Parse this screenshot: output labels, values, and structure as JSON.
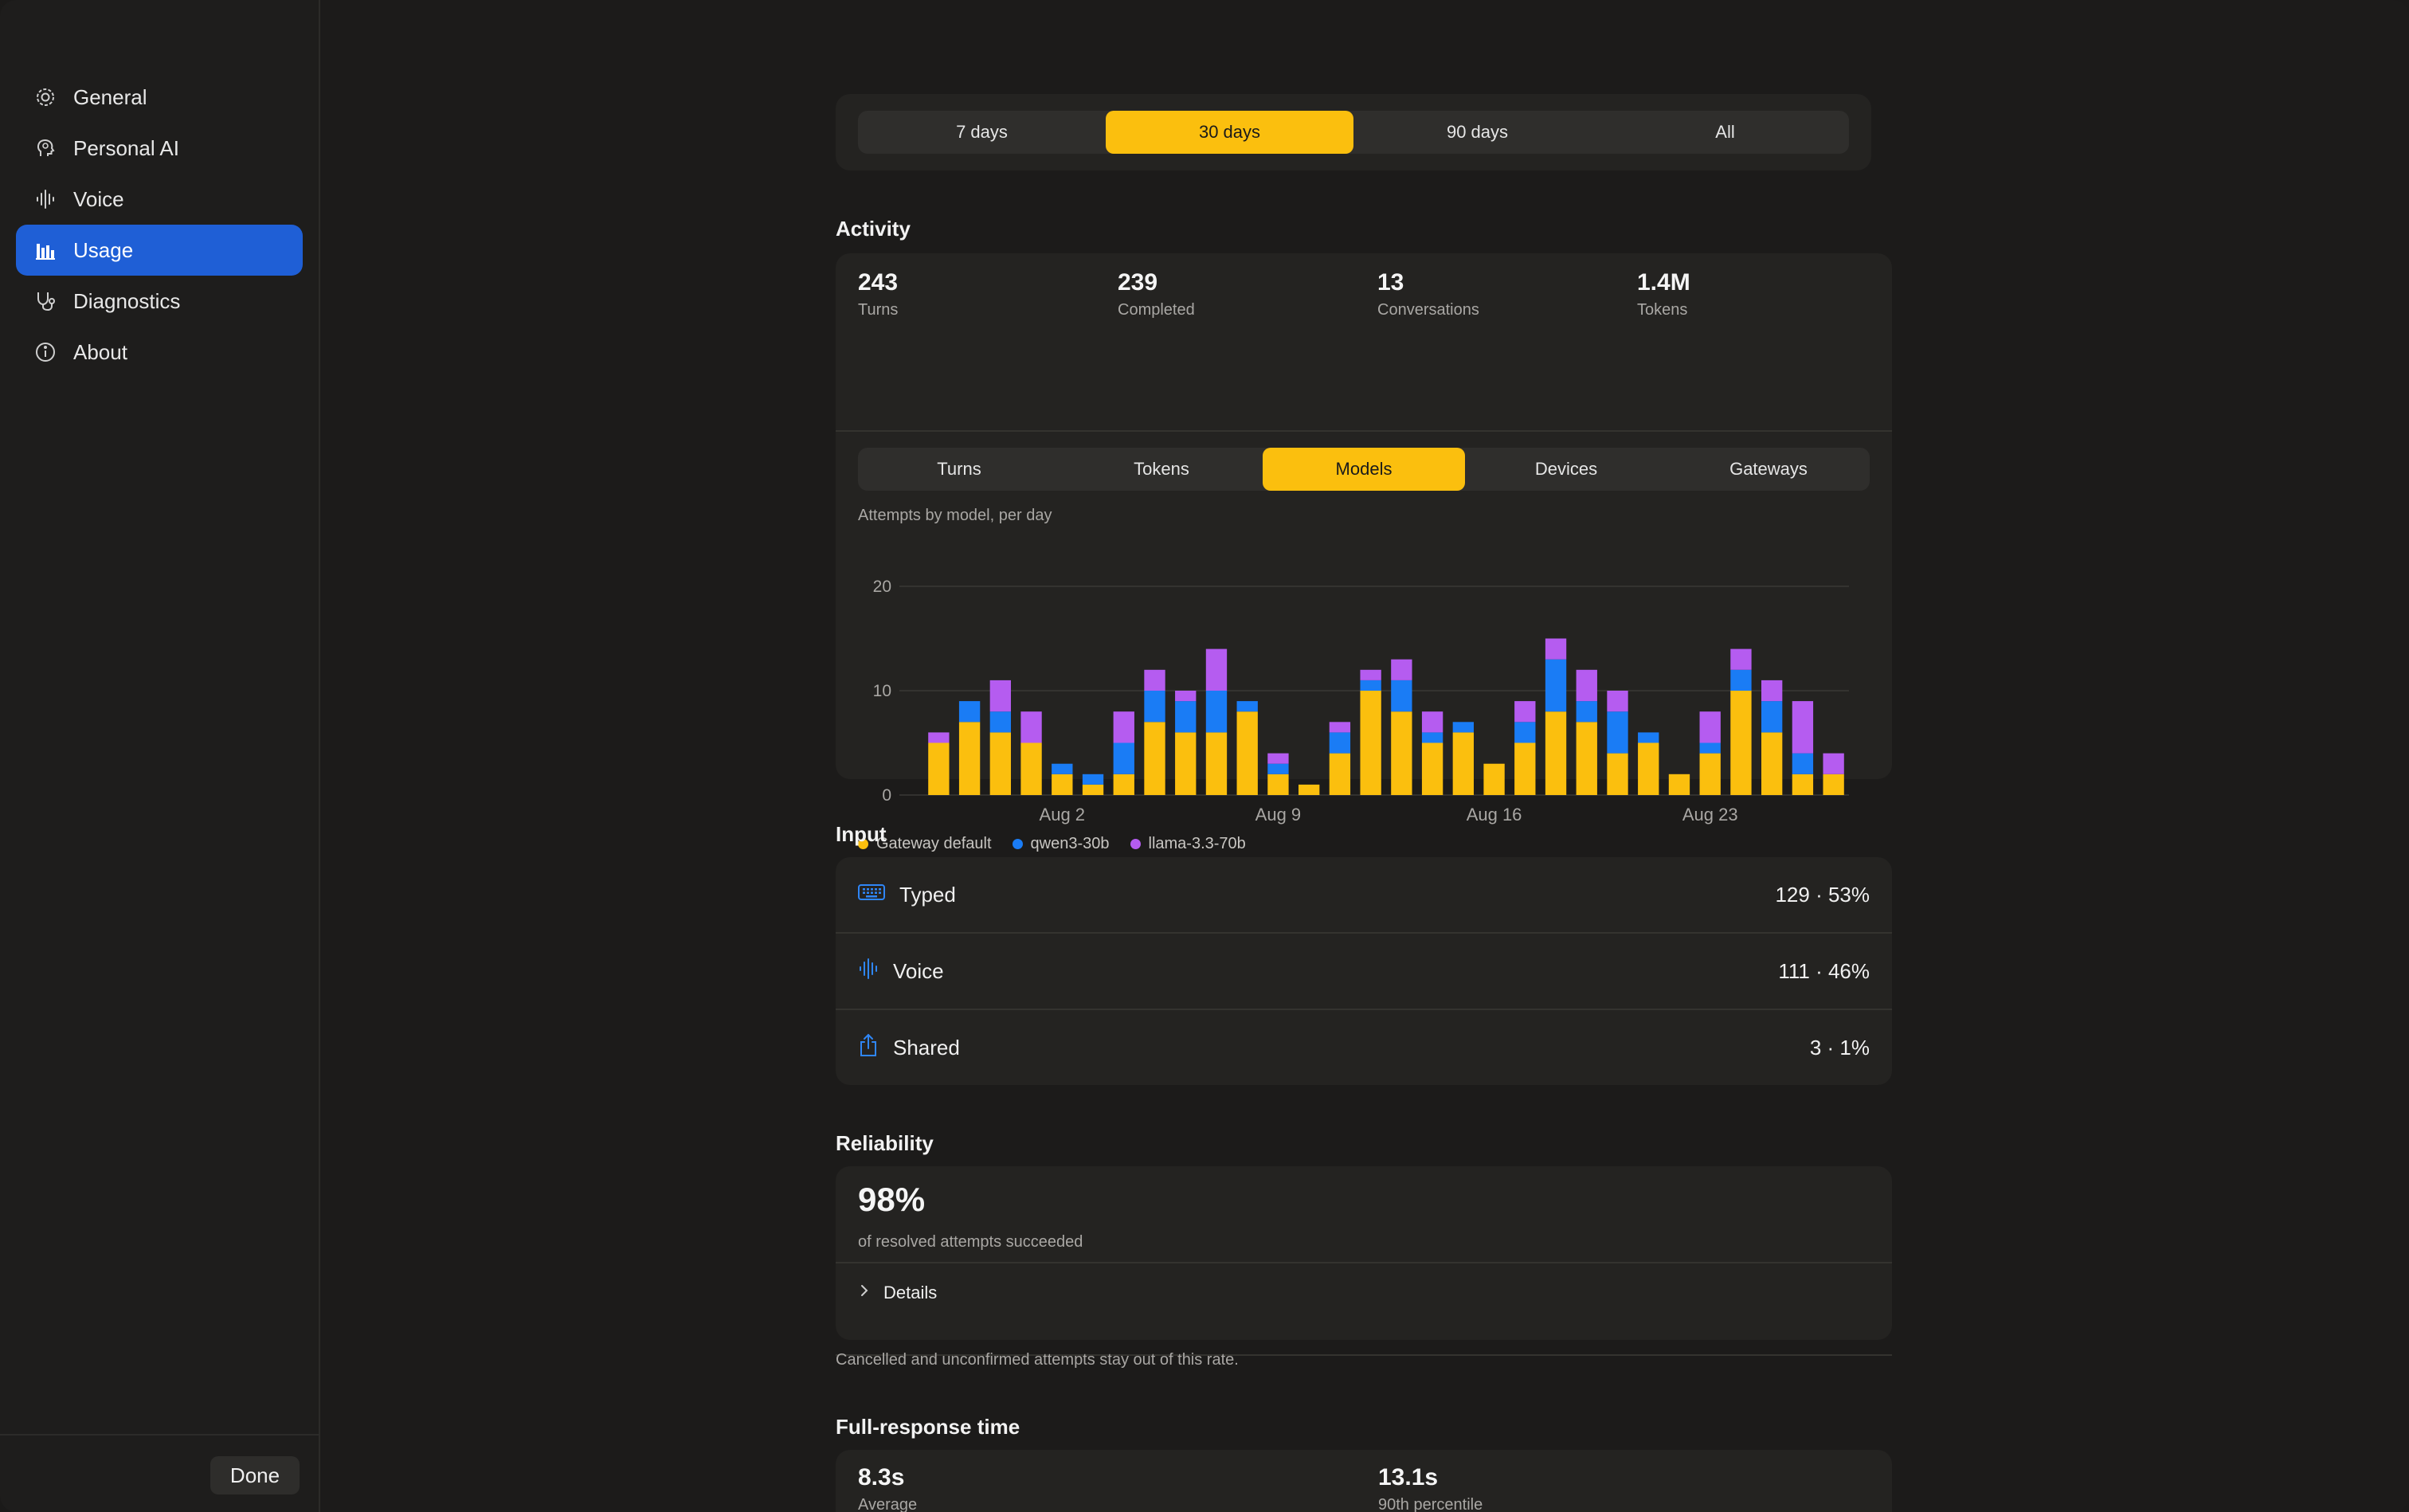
{
  "sidebar": {
    "items": [
      {
        "label": "General",
        "icon": "gear-icon",
        "active": false
      },
      {
        "label": "Personal AI",
        "icon": "head-icon",
        "active": false
      },
      {
        "label": "Voice",
        "icon": "waveform-icon",
        "active": false
      },
      {
        "label": "Usage",
        "icon": "bar-chart-icon",
        "active": true
      },
      {
        "label": "Diagnostics",
        "icon": "stethoscope-icon",
        "active": false
      },
      {
        "label": "About",
        "icon": "info-icon",
        "active": false
      }
    ],
    "done_label": "Done"
  },
  "range": {
    "options": [
      "7 days",
      "30 days",
      "90 days",
      "All"
    ],
    "selected": "30 days"
  },
  "activity": {
    "title": "Activity",
    "stats": [
      {
        "value": "243",
        "label": "Turns"
      },
      {
        "value": "239",
        "label": "Completed"
      },
      {
        "value": "13",
        "label": "Conversations"
      },
      {
        "value": "1.4M",
        "label": "Tokens"
      }
    ],
    "tabs": [
      "Turns",
      "Tokens",
      "Models",
      "Devices",
      "Gateways"
    ],
    "selected_tab": "Models",
    "chart_caption": "Attempts by model, per day"
  },
  "chart_data": {
    "type": "bar",
    "stacked": true,
    "ylim": [
      0,
      20
    ],
    "yticks": [
      "0",
      "10",
      "20"
    ],
    "xtick_labels": [
      {
        "label": "Aug 2",
        "index": 4
      },
      {
        "label": "Aug 9",
        "index": 11
      },
      {
        "label": "Aug 16",
        "index": 18
      },
      {
        "label": "Aug 23",
        "index": 25
      }
    ],
    "series": [
      {
        "name": "Gateway default",
        "color": "#fbbf0e",
        "values": [
          5,
          7,
          6,
          5,
          2,
          1,
          2,
          7,
          6,
          6,
          8,
          2,
          1,
          4,
          10,
          8,
          5,
          6,
          3,
          5,
          8,
          7,
          4,
          5,
          2,
          4,
          10,
          6,
          2,
          2
        ]
      },
      {
        "name": "qwen3-30b",
        "color": "#1a7cf5",
        "values": [
          0,
          2,
          2,
          0,
          1,
          1,
          3,
          3,
          3,
          4,
          1,
          1,
          0,
          2,
          1,
          3,
          1,
          1,
          0,
          2,
          5,
          2,
          4,
          1,
          0,
          1,
          2,
          3,
          2,
          0
        ]
      },
      {
        "name": "llama-3.3-70b",
        "color": "#b55cf0",
        "values": [
          1,
          0,
          3,
          3,
          0,
          0,
          3,
          2,
          1,
          4,
          0,
          1,
          0,
          1,
          1,
          2,
          2,
          0,
          0,
          2,
          2,
          3,
          2,
          0,
          0,
          3,
          2,
          2,
          5,
          2
        ]
      }
    ],
    "grid": true,
    "legend": "bottom-left"
  },
  "input": {
    "title": "Input",
    "rows": [
      {
        "icon": "keyboard-icon",
        "label": "Typed",
        "value": "129 · 53%"
      },
      {
        "icon": "waveform-icon",
        "label": "Voice",
        "value": "111 · 46%"
      },
      {
        "icon": "share-icon",
        "label": "Shared",
        "value": "3 · 1%"
      }
    ]
  },
  "reliability": {
    "title": "Reliability",
    "value": "98%",
    "caption": "of resolved attempts succeeded",
    "details_label": "Details",
    "footnote": "Cancelled and unconfirmed attempts stay out of this rate."
  },
  "response_time": {
    "title": "Full-response time",
    "stats": [
      {
        "value": "8.3s",
        "label": "Average"
      },
      {
        "value": "13.1s",
        "label": "90th percentile"
      }
    ]
  },
  "colors": {
    "accent": "#fbbf0e",
    "selection": "#1f5fd6",
    "qwen": "#1a7cf5",
    "llama": "#b55cf0"
  }
}
